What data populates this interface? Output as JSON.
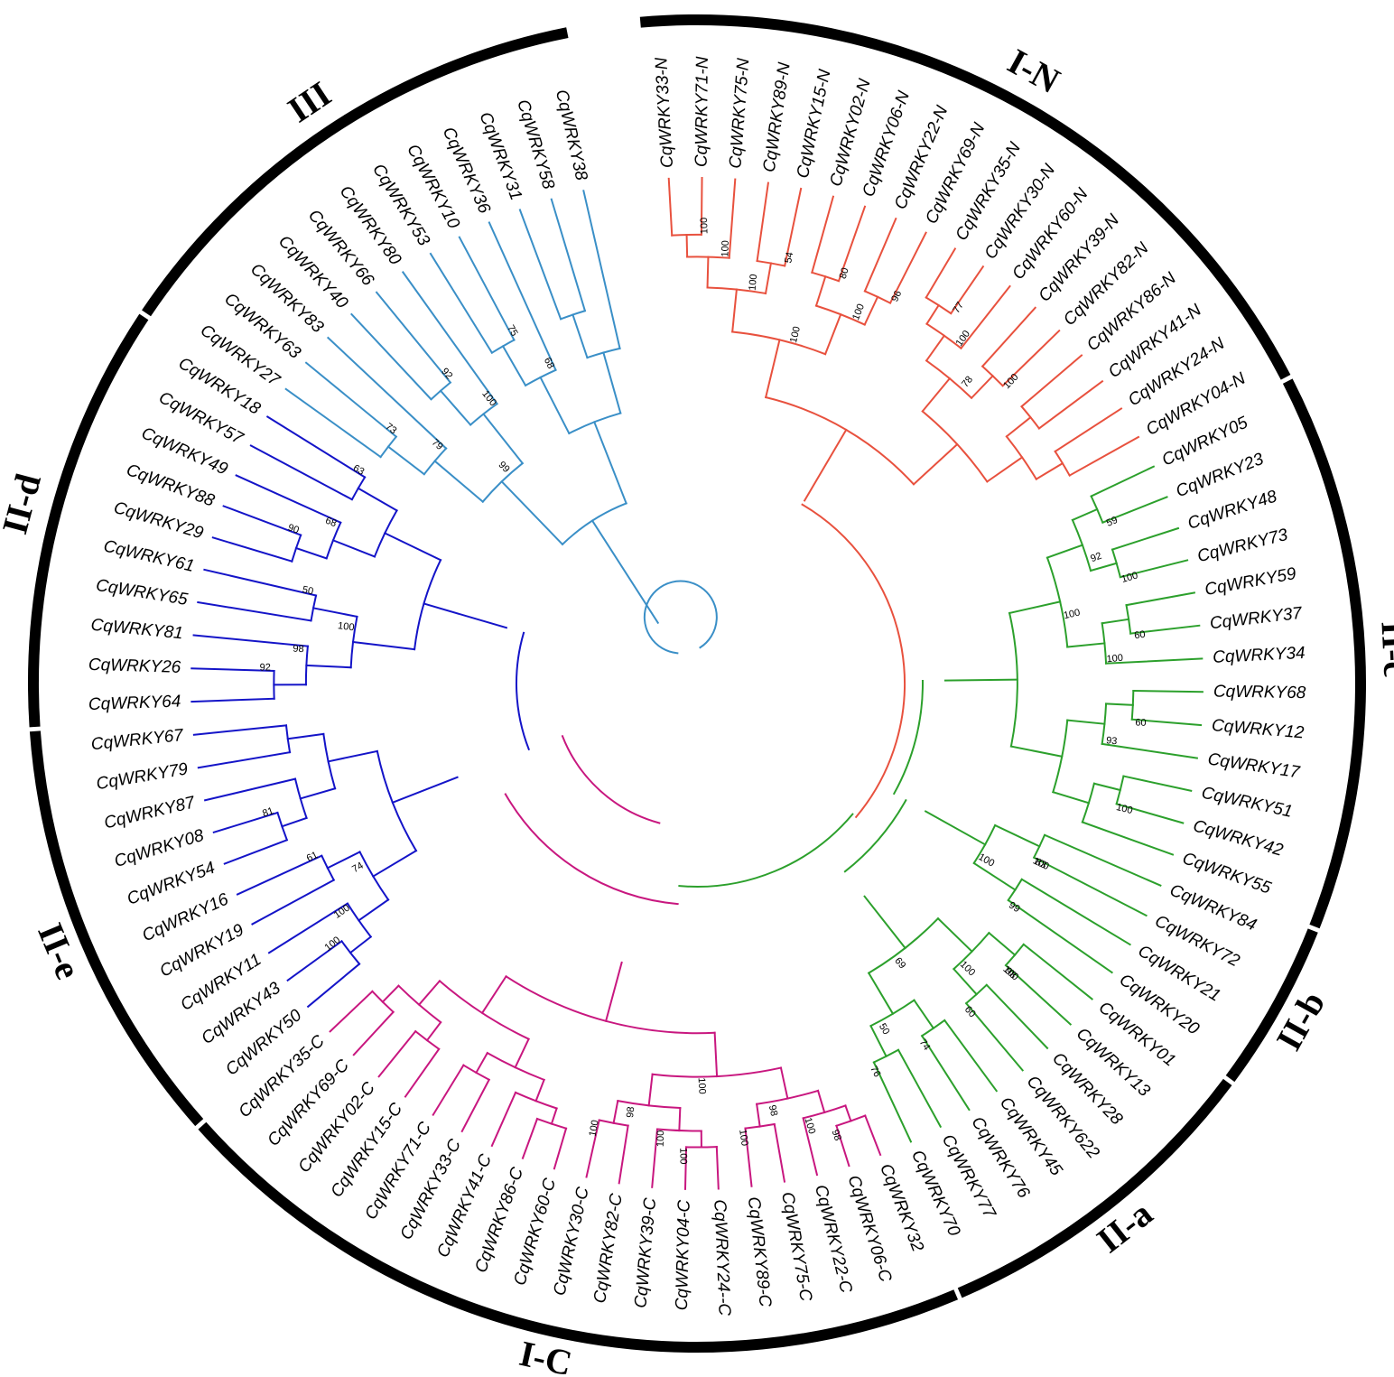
{
  "colors": {
    "I-N": "#e8513e",
    "III": "#3a8fc7",
    "II-c": "#2ca02c",
    "II-b": "#2ca02c",
    "II-a": "#2ca02c",
    "II-d": "#1414c8",
    "II-e": "#1414c8",
    "I-C": "#c8177f",
    "bar": "#000000"
  },
  "groups": [
    {
      "name": "I-N",
      "clade": "I-N"
    },
    {
      "name": "II-c",
      "clade": "II-c"
    },
    {
      "name": "II-b",
      "clade": "II-b"
    },
    {
      "name": "II-a",
      "clade": "II-a"
    },
    {
      "name": "I-C",
      "clade": "I-C"
    },
    {
      "name": "II-e",
      "clade": "II-e"
    },
    {
      "name": "II-d",
      "clade": "II-d"
    },
    {
      "name": "III",
      "clade": "III"
    }
  ],
  "leaves": [
    {
      "label": "CqWRKY33-N",
      "clade": "I-N"
    },
    {
      "label": "CqWRKY71-N",
      "clade": "I-N"
    },
    {
      "label": "CqWRKY75-N",
      "clade": "I-N"
    },
    {
      "label": "CqWRKY89-N",
      "clade": "I-N"
    },
    {
      "label": "CqWRKY15-N",
      "clade": "I-N"
    },
    {
      "label": "CqWRKY02-N",
      "clade": "I-N"
    },
    {
      "label": "CqWRKY06-N",
      "clade": "I-N"
    },
    {
      "label": "CqWRKY22-N",
      "clade": "I-N"
    },
    {
      "label": "CqWRKY69-N",
      "clade": "I-N"
    },
    {
      "label": "CqWRKY35-N",
      "clade": "I-N"
    },
    {
      "label": "CqWRKY30-N",
      "clade": "I-N"
    },
    {
      "label": "CqWRKY60-N",
      "clade": "I-N"
    },
    {
      "label": "CqWRKY39-N",
      "clade": "I-N"
    },
    {
      "label": "CqWRKY82-N",
      "clade": "I-N"
    },
    {
      "label": "CqWRKY86-N",
      "clade": "I-N"
    },
    {
      "label": "CqWRKY41-N",
      "clade": "I-N"
    },
    {
      "label": "CqWRKY24-N",
      "clade": "I-N"
    },
    {
      "label": "CqWRKY04-N",
      "clade": "I-N"
    },
    {
      "label": "CqWRKY05",
      "clade": "II-c"
    },
    {
      "label": "CqWRKY23",
      "clade": "II-c"
    },
    {
      "label": "CqWRKY48",
      "clade": "II-c"
    },
    {
      "label": "CqWRKY73",
      "clade": "II-c"
    },
    {
      "label": "CqWRKY59",
      "clade": "II-c"
    },
    {
      "label": "CqWRKY37",
      "clade": "II-c"
    },
    {
      "label": "CqWRKY34",
      "clade": "II-c"
    },
    {
      "label": "CqWRKY68",
      "clade": "II-c"
    },
    {
      "label": "CqWRKY12",
      "clade": "II-c"
    },
    {
      "label": "CqWRKY17",
      "clade": "II-c"
    },
    {
      "label": "CqWRKY51",
      "clade": "II-c"
    },
    {
      "label": "CqWRKY42",
      "clade": "II-c"
    },
    {
      "label": "CqWRKY55",
      "clade": "II-c"
    },
    {
      "label": "CqWRKY84",
      "clade": "II-b"
    },
    {
      "label": "CqWRKY72",
      "clade": "II-b"
    },
    {
      "label": "CqWRKY21",
      "clade": "II-b"
    },
    {
      "label": "CqWRKY20",
      "clade": "II-b"
    },
    {
      "label": "CqWRKY01",
      "clade": "II-a"
    },
    {
      "label": "CqWRKY13",
      "clade": "II-a"
    },
    {
      "label": "CqWRKY28",
      "clade": "II-a"
    },
    {
      "label": "CqWRKY622",
      "clade": "II-a"
    },
    {
      "label": "CqWRKY45",
      "clade": "II-a"
    },
    {
      "label": "CqWRKY76",
      "clade": "II-a"
    },
    {
      "label": "CqWRKY77",
      "clade": "II-a"
    },
    {
      "label": "CqWRKY70",
      "clade": "II-a"
    },
    {
      "label": "CqWRKY32",
      "clade": "I-C"
    },
    {
      "label": "CqWRKY06-C",
      "clade": "I-C"
    },
    {
      "label": "CqWRKY22-C",
      "clade": "I-C"
    },
    {
      "label": "CqWRKY75-C",
      "clade": "I-C"
    },
    {
      "label": "CqWRKY89-C",
      "clade": "I-C"
    },
    {
      "label": "CqWRKY24--C",
      "clade": "I-C"
    },
    {
      "label": "CqWRKY04-C",
      "clade": "I-C"
    },
    {
      "label": "CqWRKY39-C",
      "clade": "I-C"
    },
    {
      "label": "CqWRKY82-C",
      "clade": "I-C"
    },
    {
      "label": "CqWRKY30-C",
      "clade": "I-C"
    },
    {
      "label": "CqWRKY60-C",
      "clade": "I-C"
    },
    {
      "label": "CqWRKY86-C",
      "clade": "I-C"
    },
    {
      "label": "CqWRKY41-C",
      "clade": "I-C"
    },
    {
      "label": "CqWRKY33-C",
      "clade": "I-C"
    },
    {
      "label": "CqWRKY71-C",
      "clade": "I-C"
    },
    {
      "label": "CqWRKY15-C",
      "clade": "I-C"
    },
    {
      "label": "CqWRKY02-C",
      "clade": "I-C"
    },
    {
      "label": "CqWRKY69-C",
      "clade": "I-C"
    },
    {
      "label": "CqWRKY35-C",
      "clade": "I-C"
    },
    {
      "label": "CqWRKY50",
      "clade": "II-e"
    },
    {
      "label": "CqWRKY43",
      "clade": "II-e"
    },
    {
      "label": "CqWRKY11",
      "clade": "II-e"
    },
    {
      "label": "CqWRKY19",
      "clade": "II-e"
    },
    {
      "label": "CqWRKY16",
      "clade": "II-e"
    },
    {
      "label": "CqWRKY54",
      "clade": "II-e"
    },
    {
      "label": "CqWRKY08",
      "clade": "II-e"
    },
    {
      "label": "CqWRKY87",
      "clade": "II-e"
    },
    {
      "label": "CqWRKY79",
      "clade": "II-e"
    },
    {
      "label": "CqWRKY67",
      "clade": "II-e"
    },
    {
      "label": "CqWRKY64",
      "clade": "II-d"
    },
    {
      "label": "CqWRKY26",
      "clade": "II-d"
    },
    {
      "label": "CqWRKY81",
      "clade": "II-d"
    },
    {
      "label": "CqWRKY65",
      "clade": "II-d"
    },
    {
      "label": "CqWRKY61",
      "clade": "II-d"
    },
    {
      "label": "CqWRKY29",
      "clade": "II-d"
    },
    {
      "label": "CqWRKY88",
      "clade": "II-d"
    },
    {
      "label": "CqWRKY49",
      "clade": "II-d"
    },
    {
      "label": "CqWRKY57",
      "clade": "II-d"
    },
    {
      "label": "CqWRKY18",
      "clade": "II-d"
    },
    {
      "label": "CqWRKY27",
      "clade": "III"
    },
    {
      "label": "CqWRKY63",
      "clade": "III"
    },
    {
      "label": "CqWRKY83",
      "clade": "III"
    },
    {
      "label": "CqWRKY40",
      "clade": "III"
    },
    {
      "label": "CqWRKY66",
      "clade": "III"
    },
    {
      "label": "CqWRKY80",
      "clade": "III"
    },
    {
      "label": "CqWRKY53",
      "clade": "III"
    },
    {
      "label": "CqWRKY10",
      "clade": "III"
    },
    {
      "label": "CqWRKY36",
      "clade": "III"
    },
    {
      "label": "CqWRKY31",
      "clade": "III"
    },
    {
      "label": "CqWRKY58",
      "clade": "III"
    },
    {
      "label": "CqWRKY38",
      "clade": "III"
    }
  ],
  "bootstrap": [
    {
      "value": "100",
      "clade": "I-N"
    },
    {
      "value": "100",
      "clade": "I-N"
    },
    {
      "value": "54",
      "clade": "I-N"
    },
    {
      "value": "100",
      "clade": "I-N"
    },
    {
      "value": "80",
      "clade": "I-N"
    },
    {
      "value": "96",
      "clade": "I-N"
    },
    {
      "value": "100",
      "clade": "I-N"
    },
    {
      "value": "100",
      "clade": "I-N"
    },
    {
      "value": "77",
      "clade": "I-N"
    },
    {
      "value": "100",
      "clade": "I-N"
    },
    {
      "value": "100",
      "clade": "I-N"
    },
    {
      "value": "78",
      "clade": "I-N"
    },
    {
      "value": "59",
      "clade": "II-c"
    },
    {
      "value": "73",
      "clade": "III"
    },
    {
      "value": "79",
      "clade": "III"
    },
    {
      "value": "92",
      "clade": "III"
    },
    {
      "value": "100",
      "clade": "III"
    },
    {
      "value": "99",
      "clade": "III"
    },
    {
      "value": "75",
      "clade": "III"
    },
    {
      "value": "68",
      "clade": "III"
    },
    {
      "value": "100",
      "clade": "II-c"
    },
    {
      "value": "92",
      "clade": "II-c"
    },
    {
      "value": "60",
      "clade": "II-c"
    },
    {
      "value": "100",
      "clade": "II-c"
    },
    {
      "value": "100",
      "clade": "II-c"
    },
    {
      "value": "60",
      "clade": "II-c"
    },
    {
      "value": "93",
      "clade": "II-c"
    },
    {
      "value": "100",
      "clade": "II-c"
    },
    {
      "value": "100",
      "clade": "II-b"
    },
    {
      "value": "99",
      "clade": "II-b"
    },
    {
      "value": "100",
      "clade": "II-b"
    },
    {
      "value": "83",
      "clade": "II-b"
    },
    {
      "value": "98",
      "clade": "II-a"
    },
    {
      "value": "60",
      "clade": "II-a"
    },
    {
      "value": "100",
      "clade": "II-a"
    },
    {
      "value": "74",
      "clade": "II-a"
    },
    {
      "value": "76",
      "clade": "II-a"
    },
    {
      "value": "50",
      "clade": "II-a"
    },
    {
      "value": "69",
      "clade": "II-a"
    },
    {
      "value": "100",
      "clade": "II-a"
    },
    {
      "value": "98",
      "clade": "I-C"
    },
    {
      "value": "100",
      "clade": "I-C"
    },
    {
      "value": "100",
      "clade": "I-C"
    },
    {
      "value": "98",
      "clade": "I-C"
    },
    {
      "value": "100",
      "clade": "I-C"
    },
    {
      "value": "100",
      "clade": "I-C"
    },
    {
      "value": "100",
      "clade": "I-C"
    },
    {
      "value": "98",
      "clade": "I-C"
    },
    {
      "value": "100",
      "clade": "I-C"
    },
    {
      "value": "92",
      "clade": "II-d"
    },
    {
      "value": "98",
      "clade": "II-d"
    },
    {
      "value": "50",
      "clade": "II-d"
    },
    {
      "value": "100",
      "clade": "II-d"
    },
    {
      "value": "90",
      "clade": "II-d"
    },
    {
      "value": "68",
      "clade": "II-d"
    },
    {
      "value": "63",
      "clade": "II-d"
    },
    {
      "value": "100",
      "clade": "II-e"
    },
    {
      "value": "100",
      "clade": "II-e"
    },
    {
      "value": "61",
      "clade": "II-e"
    },
    {
      "value": "74",
      "clade": "II-e"
    },
    {
      "value": "81",
      "clade": "II-e"
    }
  ]
}
